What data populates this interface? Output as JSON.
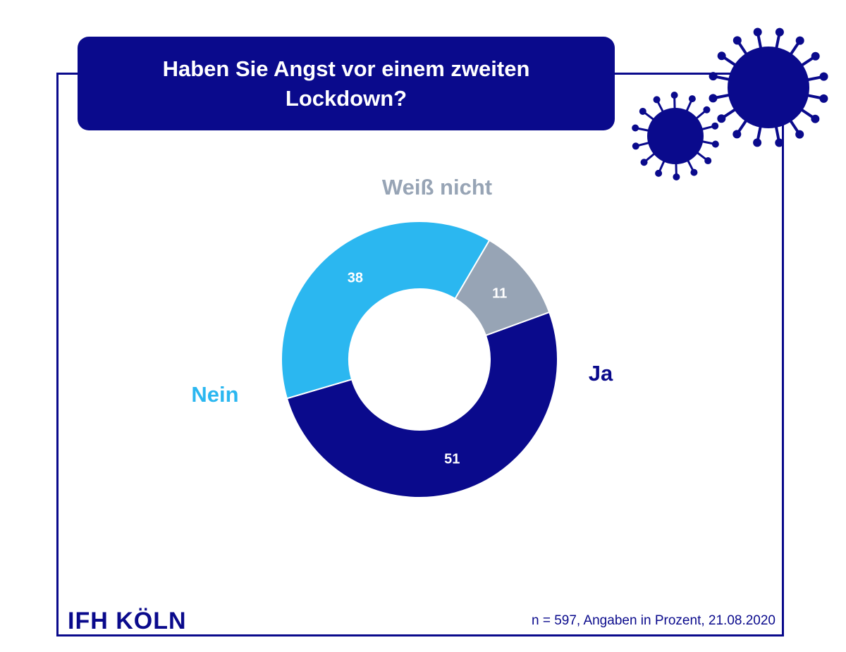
{
  "title": "Haben Sie Angst vor einem zweiten Lockdown?",
  "chart_data": {
    "type": "pie",
    "variant": "donut",
    "slices": [
      {
        "label": "Ja",
        "value": 51,
        "color": "#0a0a8c",
        "label_color": "#0a0a8c"
      },
      {
        "label": "Nein",
        "value": 38,
        "color": "#2bb7f0",
        "label_color": "#2bb7f0"
      },
      {
        "label": "Weiß nicht",
        "value": 11,
        "color": "#97a4b5",
        "label_color": "#97a4b5"
      }
    ]
  },
  "footer": {
    "logo": "IFH KÖLN",
    "note": "n = 597, Angaben in Prozent, 21.08.2020"
  },
  "colors": {
    "brand": "#0a0a8c"
  }
}
